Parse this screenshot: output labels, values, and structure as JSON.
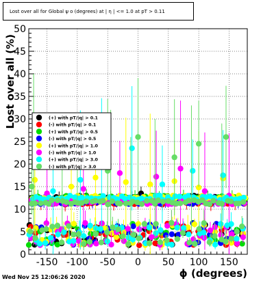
{
  "window": {
    "title": "Lost over all for Global ψ ο (degrees) at | η | <= 1.0 at pT > 0.11",
    "timestamp": "Wed Nov 25 12:06:26 2020"
  },
  "chart_data": {
    "type": "scatter",
    "title": "Lost over all for Global ψ ο (degrees) at | η | <= 1.0 at pT > 0.11",
    "xlabel": "ϕ (degrees)",
    "ylabel": "Lost over all (%)",
    "xlim": [
      -180,
      180
    ],
    "ylim": [
      0,
      50
    ],
    "xticks": [
      -150,
      -100,
      -50,
      0,
      50,
      100,
      150
    ],
    "yticks": [
      0,
      5,
      10,
      15,
      20,
      25,
      30,
      35,
      40,
      45,
      50
    ],
    "grid": true,
    "legend_position": "left-middle",
    "series": [
      {
        "name": "(+) with pT/|q| > 0.1",
        "color": "#000000",
        "band": "upper",
        "x": [
          -170,
          -130,
          -90,
          -50,
          -10,
          5,
          30,
          70,
          110,
          150
        ],
        "y": [
          12.2,
          12.4,
          12.0,
          12.3,
          12.5,
          13.5,
          12.1,
          12.4,
          12.2,
          12.3
        ]
      },
      {
        "name": "(-) with pT/|q| > 0.1",
        "color": "#ff0000",
        "band": "upper",
        "x": [
          -160,
          -120,
          -80,
          -40,
          0,
          40,
          80,
          120,
          160
        ],
        "y": [
          11.3,
          11.0,
          11.5,
          11.2,
          11.6,
          11.0,
          11.4,
          11.1,
          11.3
        ]
      },
      {
        "name": "(+) with pT/|q| > 0.5",
        "color": "#00dd00",
        "band": "upper",
        "x": [
          -165,
          -125,
          -85,
          -45,
          -5,
          35,
          75,
          115,
          155
        ],
        "y": [
          12.8,
          12.5,
          12.9,
          12.6,
          12.7,
          12.5,
          12.8,
          12.6,
          12.7
        ]
      },
      {
        "name": "(-) with pT/|q| > 0.5",
        "color": "#0000ff",
        "band": "upper",
        "x": [
          -155,
          -115,
          -75,
          -35,
          5,
          45,
          85,
          125,
          165
        ],
        "y": [
          11.8,
          12.0,
          11.7,
          11.9,
          12.1,
          11.8,
          12.0,
          11.9,
          11.7
        ]
      },
      {
        "name": "(+) with pT/|q| > 1.0",
        "color": "#ffff00",
        "band": "upper",
        "x": [
          -170,
          -110,
          -70,
          -20,
          20,
          60,
          100,
          140
        ],
        "y": [
          16.5,
          15.0,
          17.0,
          16.0,
          15.5,
          16.2,
          14.8,
          16.8
        ]
      },
      {
        "name": "(-) with pT/|q| > 1.0",
        "color": "#ff00ff",
        "band": "upper",
        "x": [
          -150,
          -90,
          -30,
          30,
          70,
          110,
          150
        ],
        "y": [
          13.5,
          14.5,
          18.0,
          17.2,
          19.0,
          14.0,
          13.0
        ]
      },
      {
        "name": "(+) with pT/|q| > 3.0",
        "color": "#00ffff",
        "band": "upper",
        "x": [
          -140,
          -95,
          -60,
          -10,
          40,
          90,
          140
        ],
        "y": [
          14.0,
          16.5,
          20.5,
          23.5,
          15.5,
          18.5,
          17.5
        ]
      },
      {
        "name": "(-) with pT/|q| > 3.0",
        "color": "#66dd66",
        "band": "upper",
        "x": [
          -175,
          -100,
          -50,
          0,
          60,
          100,
          145
        ],
        "y": [
          15.0,
          21.0,
          18.5,
          26.0,
          21.5,
          24.5,
          26.0
        ]
      }
    ],
    "lower_band_y_range": [
      2.0,
      7.0
    ],
    "upper_band_y_range": [
      10.5,
      13.8
    ]
  }
}
